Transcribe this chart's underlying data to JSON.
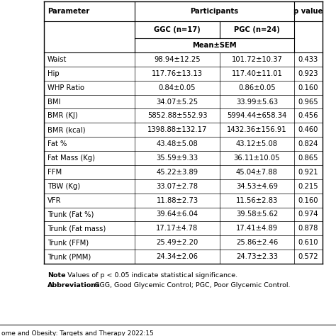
{
  "col_headers": [
    "Parameter",
    "GGC (n=17)",
    "PGC (n=24)",
    "p value"
  ],
  "subheader_participants": "Participants",
  "subheader_meansem": "Mean±SEM",
  "rows": [
    [
      "Waist",
      "98.94±12.25",
      "101.72±10.37",
      "0.433"
    ],
    [
      "Hip",
      "117.76±13.13",
      "117.40±11.01",
      "0.923"
    ],
    [
      "WHP Ratio",
      "0.84±0.05",
      "0.86±0.05",
      "0.160"
    ],
    [
      "BMI",
      "34.07±5.25",
      "33.99±5.63",
      "0.965"
    ],
    [
      "BMR (KJ)",
      "5852.88±552.93",
      "5994.44±658.34",
      "0.456"
    ],
    [
      "BMR (kcal)",
      "1398.88±132.17",
      "1432.36±156.91",
      "0.460"
    ],
    [
      "Fat %",
      "43.48±5.08",
      "43.12±5.08",
      "0.824"
    ],
    [
      "Fat Mass (Kg)",
      "35.59±9.33",
      "36.11±10.05",
      "0.865"
    ],
    [
      "FFM",
      "45.22±3.89",
      "45.04±7.88",
      "0.921"
    ],
    [
      "TBW (Kg)",
      "33.07±2.78",
      "34.53±4.69",
      "0.215"
    ],
    [
      "VFR",
      "11.88±2.73",
      "11.56±2.83",
      "0.160"
    ],
    [
      "Trunk (Fat %)",
      "39.64±6.04",
      "39.58±5.62",
      "0.974"
    ],
    [
      "Trunk (Fat mass)",
      "17.17±4.78",
      "17.41±4.89",
      "0.878"
    ],
    [
      "Trunk (FFM)",
      "25.49±2.20",
      "25.86±2.46",
      "0.610"
    ],
    [
      "Trunk (PMM)",
      "24.34±2.06",
      "24.73±2.33",
      "0.572"
    ]
  ],
  "note_bold": "Note",
  "note_normal": ": Values of p < 0.05 indicate statistical significance.",
  "abbrev_bold": "Abbreviations",
  "abbrev_normal": ": GGG, Good Glycemic Control; PGC, Poor Glycemic Control.",
  "footer": "ome and Obesity: Targets and Therapy 2022:15",
  "bg_color": "#ffffff",
  "line_color": "#000000",
  "text_color": "#000000",
  "font_size": 7.2,
  "font_size_note": 6.8,
  "font_size_footer": 6.5
}
